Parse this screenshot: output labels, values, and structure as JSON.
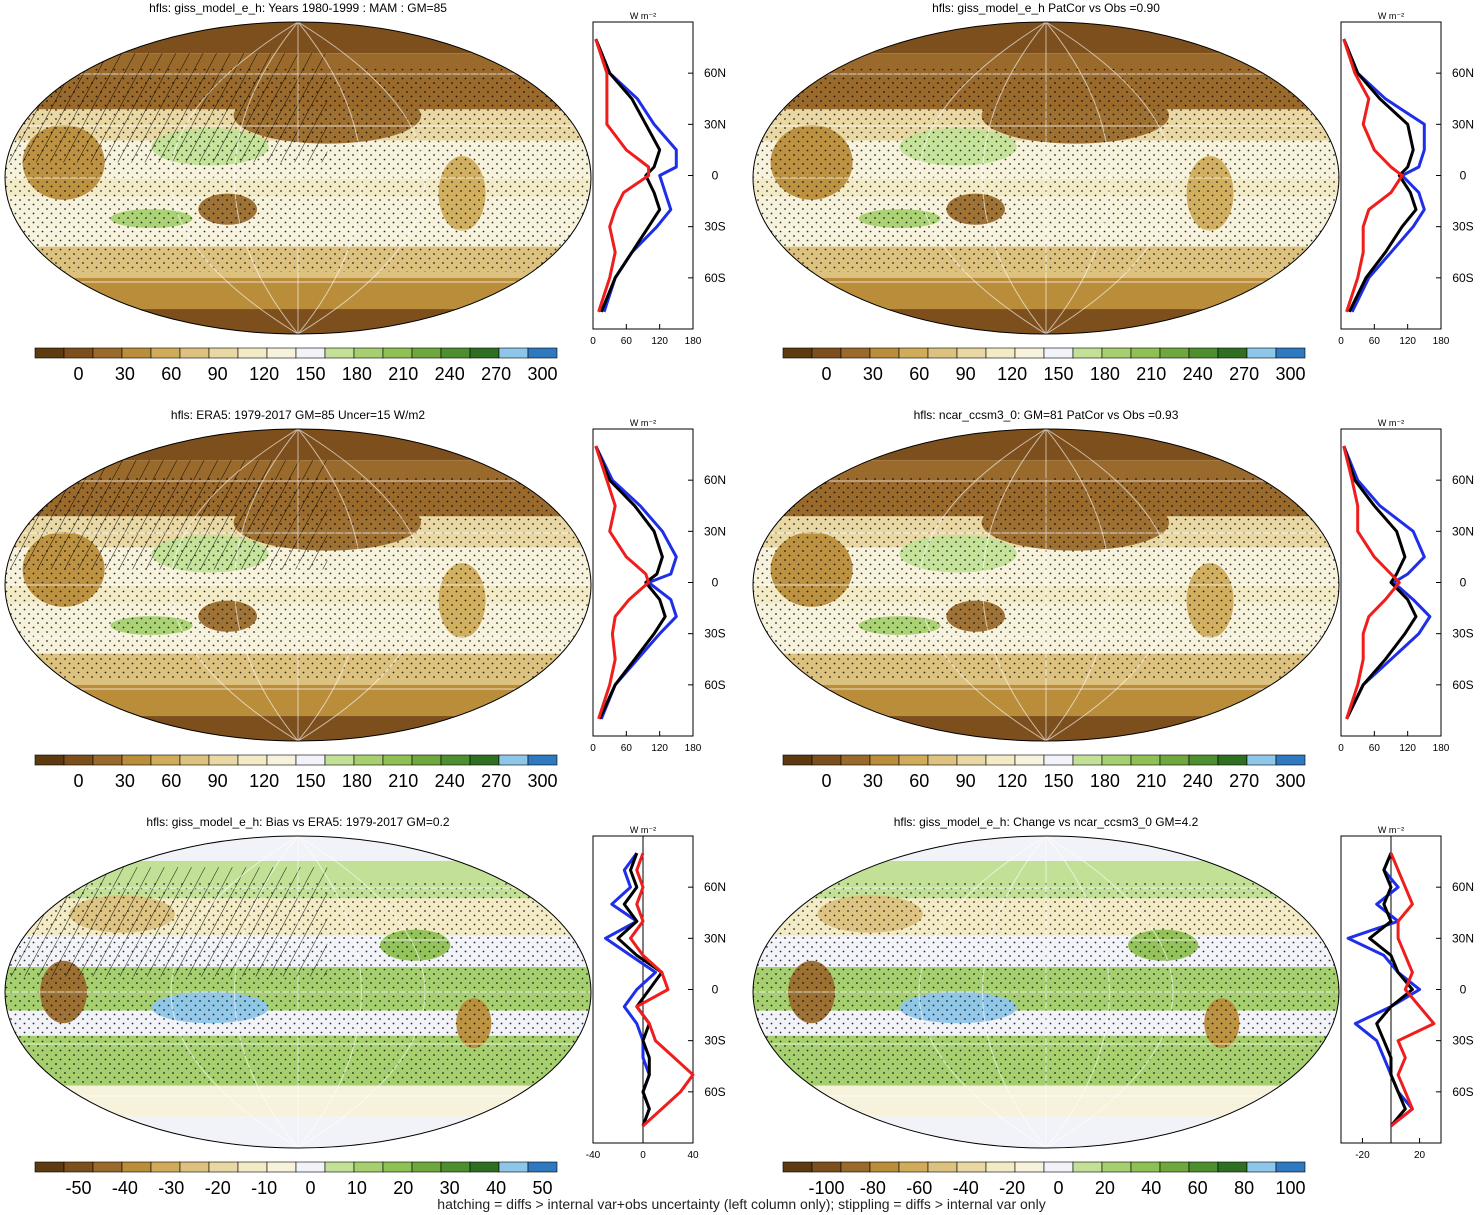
{
  "footer": "hatching = diffs > internal var+obs uncertainty (left column only); stippling = diffs > internal var only",
  "colors": [
    "#5e3a10",
    "#7d4f1c",
    "#9a6a2c",
    "#b98d3a",
    "#d0ac5a",
    "#dcc27e",
    "#e9d8a3",
    "#f3ebc6",
    "#f7f2dc",
    "#f2f3f8",
    "#c2e197",
    "#a6d06f",
    "#8ec053",
    "#6ea73d",
    "#4d8f2e",
    "#2e6f22",
    "#8ec6ea",
    "#2e79c0"
  ],
  "chart_data": [
    {
      "type": "heatmap",
      "title": "hfls: giss_model_e_h: Years 1980-1999 : MAM : GM=85",
      "colorbar": [
        "0",
        "30",
        "60",
        "90",
        "120",
        "150",
        "180",
        "210",
        "240",
        "270",
        "300"
      ],
      "profile": {
        "unit": "W m-2",
        "xticks": [
          "0",
          "60",
          "120",
          "180"
        ],
        "xlim": [
          0,
          180
        ],
        "yticks": [
          "60N",
          "30N",
          "0",
          "30S",
          "60S"
        ],
        "ylim": [
          -90,
          90
        ],
        "series": [
          {
            "color": "blue",
            "lat": [
              80,
              60,
              45,
              30,
              15,
              5,
              0,
              -10,
              -20,
              -30,
              -45,
              -60,
              -80
            ],
            "values": [
              5,
              30,
              80,
              110,
              150,
              150,
              120,
              130,
              140,
              115,
              70,
              40,
              20
            ]
          },
          {
            "color": "black",
            "lat": [
              80,
              60,
              45,
              30,
              15,
              5,
              0,
              -10,
              -20,
              -30,
              -45,
              -60,
              -80
            ],
            "values": [
              5,
              30,
              70,
              95,
              120,
              110,
              95,
              110,
              120,
              100,
              70,
              40,
              15
            ]
          },
          {
            "color": "red",
            "lat": [
              80,
              60,
              45,
              30,
              15,
              5,
              0,
              -10,
              -20,
              -30,
              -45,
              -60,
              -80
            ],
            "values": [
              5,
              25,
              25,
              25,
              60,
              100,
              100,
              55,
              40,
              30,
              40,
              30,
              10
            ]
          }
        ]
      }
    },
    {
      "type": "heatmap",
      "title": "hfls: giss_model_e_h PatCor vs Obs =0.90",
      "colorbar": [
        "0",
        "30",
        "60",
        "90",
        "120",
        "150",
        "180",
        "210",
        "240",
        "270",
        "300"
      ],
      "profile": {
        "unit": "W m-2",
        "xticks": [
          "0",
          "60",
          "120",
          "180"
        ],
        "xlim": [
          0,
          180
        ],
        "yticks": [
          "60N",
          "30N",
          "0",
          "30S",
          "60S"
        ],
        "ylim": [
          -90,
          90
        ],
        "series": [
          {
            "color": "blue",
            "lat": [
              80,
              60,
              45,
              30,
              15,
              5,
              0,
              -10,
              -20,
              -30,
              -45,
              -60,
              -80
            ],
            "values": [
              5,
              30,
              80,
              150,
              150,
              140,
              110,
              140,
              150,
              130,
              90,
              50,
              20
            ]
          },
          {
            "color": "black",
            "lat": [
              80,
              60,
              45,
              30,
              15,
              5,
              0,
              -10,
              -20,
              -30,
              -45,
              -60,
              -80
            ],
            "values": [
              5,
              30,
              70,
              120,
              130,
              120,
              105,
              125,
              135,
              110,
              80,
              45,
              15
            ]
          },
          {
            "color": "red",
            "lat": [
              80,
              60,
              45,
              30,
              15,
              5,
              0,
              -10,
              -20,
              -30,
              -45,
              -60,
              -80
            ],
            "values": [
              5,
              25,
              50,
              40,
              60,
              90,
              110,
              90,
              50,
              40,
              40,
              30,
              10
            ]
          }
        ]
      }
    },
    {
      "type": "heatmap",
      "title": "hfls: ERA5: 1979-2017 GM=85 Uncer=15 W/m2",
      "colorbar": [
        "0",
        "30",
        "60",
        "90",
        "120",
        "150",
        "180",
        "210",
        "240",
        "270",
        "300"
      ],
      "profile": {
        "unit": "W m-2",
        "xticks": [
          "0",
          "60",
          "120",
          "180"
        ],
        "xlim": [
          0,
          180
        ],
        "yticks": [
          "60N",
          "30N",
          "0",
          "30S",
          "60S"
        ],
        "ylim": [
          -90,
          90
        ],
        "series": [
          {
            "color": "blue",
            "lat": [
              80,
              60,
              45,
              30,
              15,
              5,
              0,
              -10,
              -20,
              -30,
              -45,
              -60,
              -80
            ],
            "values": [
              5,
              35,
              85,
              125,
              150,
              140,
              100,
              140,
              150,
              120,
              80,
              40,
              15
            ]
          },
          {
            "color": "black",
            "lat": [
              80,
              60,
              45,
              30,
              15,
              5,
              0,
              -10,
              -20,
              -30,
              -45,
              -60,
              -80
            ],
            "values": [
              5,
              30,
              75,
              110,
              125,
              115,
              95,
              120,
              130,
              110,
              75,
              40,
              12
            ]
          },
          {
            "color": "red",
            "lat": [
              80,
              60,
              45,
              30,
              15,
              5,
              0,
              -10,
              -20,
              -30,
              -45,
              -60,
              -80
            ],
            "values": [
              5,
              25,
              40,
              30,
              60,
              95,
              100,
              65,
              40,
              35,
              40,
              30,
              10
            ]
          }
        ]
      }
    },
    {
      "type": "heatmap",
      "title": "hfls: ncar_ccsm3_0: GM=81 PatCor vs Obs =0.93",
      "colorbar": [
        "0",
        "30",
        "60",
        "90",
        "120",
        "150",
        "180",
        "210",
        "240",
        "270",
        "300"
      ],
      "profile": {
        "unit": "W m-2",
        "xticks": [
          "0",
          "60",
          "120",
          "180"
        ],
        "xlim": [
          0,
          180
        ],
        "yticks": [
          "60N",
          "30N",
          "0",
          "30S",
          "60S"
        ],
        "ylim": [
          -90,
          90
        ],
        "series": [
          {
            "color": "blue",
            "lat": [
              80,
              60,
              45,
              30,
              15,
              5,
              0,
              -10,
              -20,
              -30,
              -45,
              -60,
              -80
            ],
            "values": [
              5,
              30,
              70,
              130,
              150,
              120,
              95,
              130,
              160,
              140,
              90,
              40,
              10
            ]
          },
          {
            "color": "black",
            "lat": [
              80,
              60,
              45,
              30,
              15,
              5,
              0,
              -10,
              -20,
              -30,
              -45,
              -60,
              -80
            ],
            "values": [
              5,
              25,
              60,
              100,
              115,
              100,
              90,
              120,
              135,
              115,
              80,
              40,
              10
            ]
          },
          {
            "color": "red",
            "lat": [
              80,
              60,
              45,
              30,
              15,
              5,
              0,
              -10,
              -20,
              -30,
              -45,
              -60,
              -80
            ],
            "values": [
              5,
              20,
              30,
              30,
              60,
              90,
              105,
              80,
              50,
              40,
              40,
              30,
              10
            ]
          }
        ]
      }
    },
    {
      "type": "heatmap",
      "title": "hfls: giss_model_e_h: Bias vs ERA5: 1979-2017 GM=0.2",
      "colorbar": [
        "-50",
        "-40",
        "-30",
        "-20",
        "-10",
        "0",
        "10",
        "20",
        "30",
        "40",
        "50"
      ],
      "profile": {
        "unit": "W m-2",
        "xticks": [
          "-40",
          "0",
          "40"
        ],
        "xlim": [
          -40,
          40
        ],
        "yticks": [
          "60N",
          "30N",
          "0",
          "30S",
          "60S"
        ],
        "ylim": [
          -90,
          90
        ],
        "series": [
          {
            "color": "blue",
            "lat": [
              80,
              70,
              60,
              50,
              40,
              30,
              20,
              10,
              0,
              -10,
              -20,
              -30,
              -40,
              -50,
              -60,
              -70,
              -80
            ],
            "values": [
              -5,
              -15,
              -10,
              -25,
              -5,
              -30,
              -10,
              10,
              -5,
              -15,
              -5,
              0,
              0,
              5,
              0,
              5,
              0
            ]
          },
          {
            "color": "black",
            "lat": [
              80,
              70,
              60,
              50,
              40,
              30,
              20,
              10,
              0,
              -10,
              -20,
              -30,
              -40,
              -50,
              -60,
              -70,
              -80
            ],
            "values": [
              -5,
              -10,
              -5,
              -15,
              -5,
              -20,
              -5,
              15,
              5,
              -5,
              5,
              0,
              5,
              5,
              0,
              5,
              0
            ]
          },
          {
            "color": "red",
            "lat": [
              80,
              70,
              60,
              50,
              40,
              30,
              20,
              10,
              0,
              -10,
              -20,
              -30,
              -40,
              -50,
              -60,
              -70,
              -80
            ],
            "values": [
              0,
              -5,
              0,
              -5,
              0,
              -10,
              0,
              15,
              20,
              -5,
              5,
              10,
              25,
              40,
              30,
              15,
              0
            ]
          }
        ]
      }
    },
    {
      "type": "heatmap",
      "title": "hfls: giss_model_e_h: Change vs ncar_ccsm3_0 GM=4.2",
      "colorbar": [
        "-100",
        "-80",
        "-60",
        "-40",
        "-20",
        "0",
        "20",
        "40",
        "60",
        "80",
        "100"
      ],
      "profile": {
        "unit": "W m-2",
        "xticks": [
          "-20",
          "20"
        ],
        "xlim": [
          -35,
          35
        ],
        "yticks": [
          "60N",
          "30N",
          "0",
          "30S",
          "60S"
        ],
        "ylim": [
          -90,
          90
        ],
        "series": [
          {
            "color": "blue",
            "lat": [
              80,
              70,
              60,
              50,
              40,
              30,
              20,
              10,
              0,
              -10,
              -20,
              -30,
              -40,
              -50,
              -60,
              -70,
              -80
            ],
            "values": [
              0,
              -5,
              5,
              -10,
              5,
              -30,
              -5,
              5,
              20,
              0,
              -25,
              -10,
              -5,
              0,
              5,
              15,
              0
            ]
          },
          {
            "color": "black",
            "lat": [
              80,
              70,
              60,
              50,
              40,
              30,
              20,
              10,
              0,
              -10,
              -20,
              -30,
              -40,
              -50,
              -60,
              -70,
              -80
            ],
            "values": [
              0,
              -5,
              0,
              -5,
              0,
              -15,
              0,
              5,
              15,
              0,
              -10,
              -5,
              0,
              0,
              5,
              10,
              0
            ]
          },
          {
            "color": "red",
            "lat": [
              80,
              70,
              60,
              50,
              40,
              30,
              20,
              10,
              0,
              -10,
              -20,
              -30,
              -40,
              -50,
              -60,
              -70,
              -80
            ],
            "values": [
              0,
              5,
              10,
              15,
              5,
              5,
              10,
              15,
              10,
              20,
              30,
              5,
              10,
              5,
              10,
              15,
              0
            ]
          }
        ]
      }
    }
  ]
}
